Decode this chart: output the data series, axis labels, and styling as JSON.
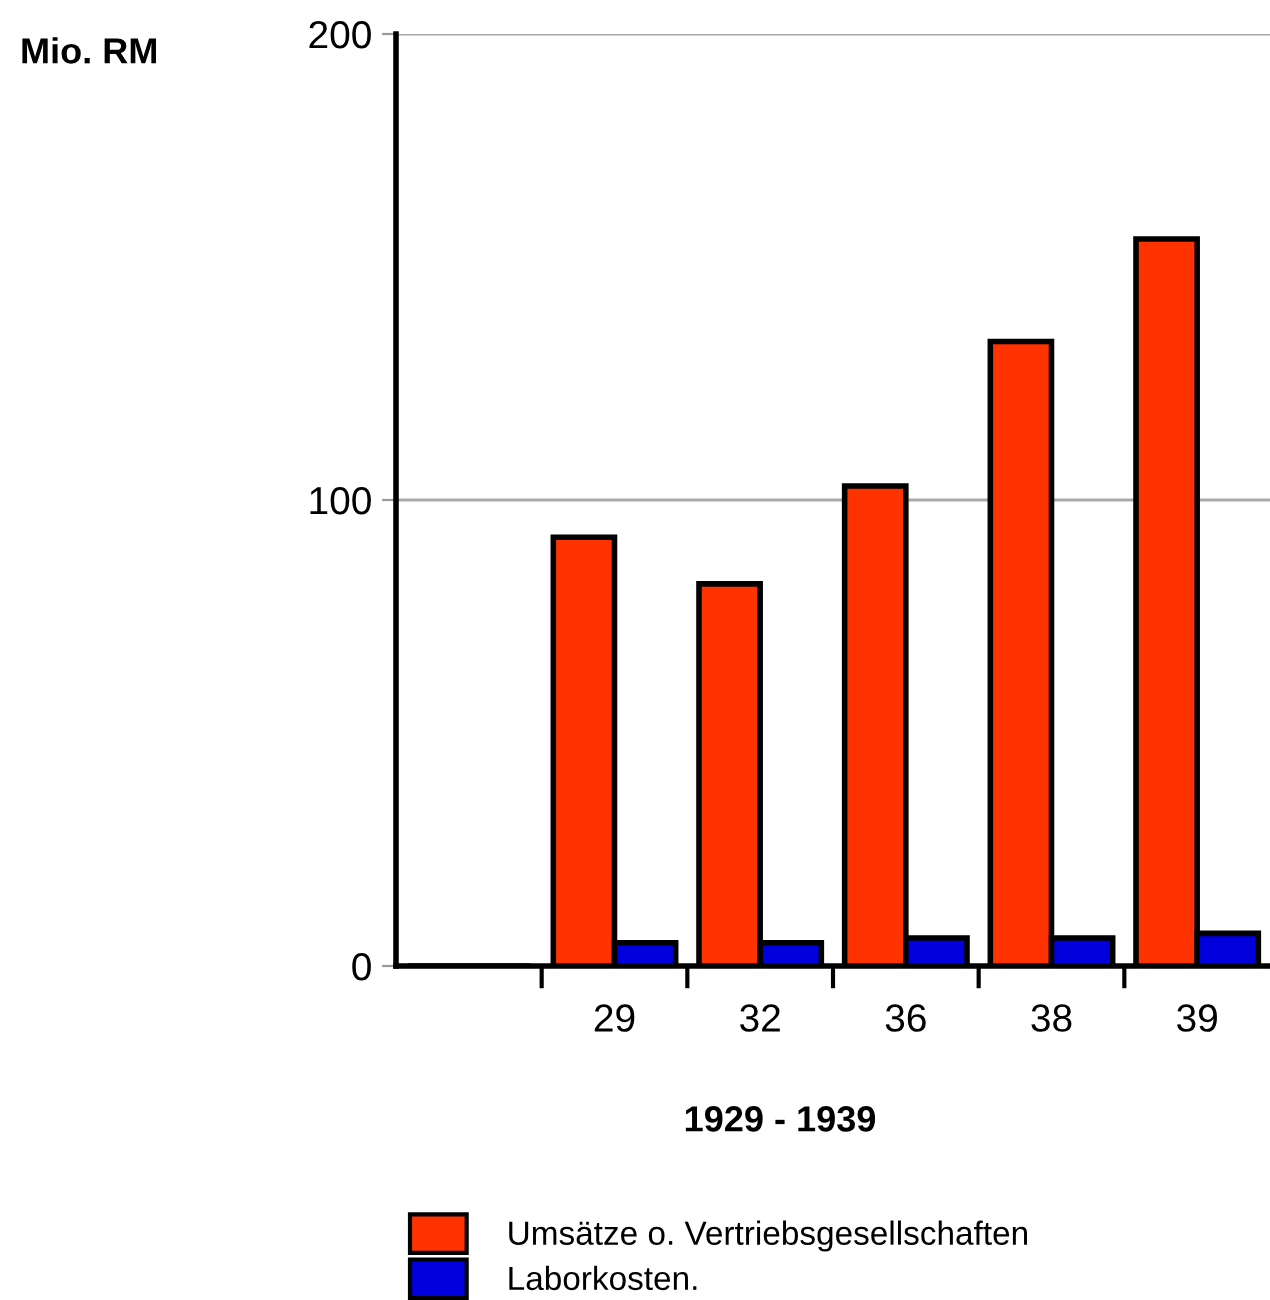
{
  "chart_data": {
    "type": "bar",
    "ylabel": "Mio. RM",
    "xlabel": "1929 - 1939",
    "categories": [
      null,
      "29",
      "32",
      "36",
      "38",
      "39"
    ],
    "series": [
      {
        "name": "Umsätze o. Vertriebsgesellschaften",
        "color": "#ff3300",
        "values": [
          0,
          92,
          82,
          103,
          134,
          156
        ]
      },
      {
        "name": "Laborkosten.",
        "color": "#0000dd",
        "values": [
          0,
          5,
          5,
          6,
          6,
          7
        ]
      }
    ],
    "ylim": [
      0,
      200
    ],
    "yticks": [
      0,
      100,
      200
    ],
    "grid": "y",
    "legend": "bottom"
  }
}
